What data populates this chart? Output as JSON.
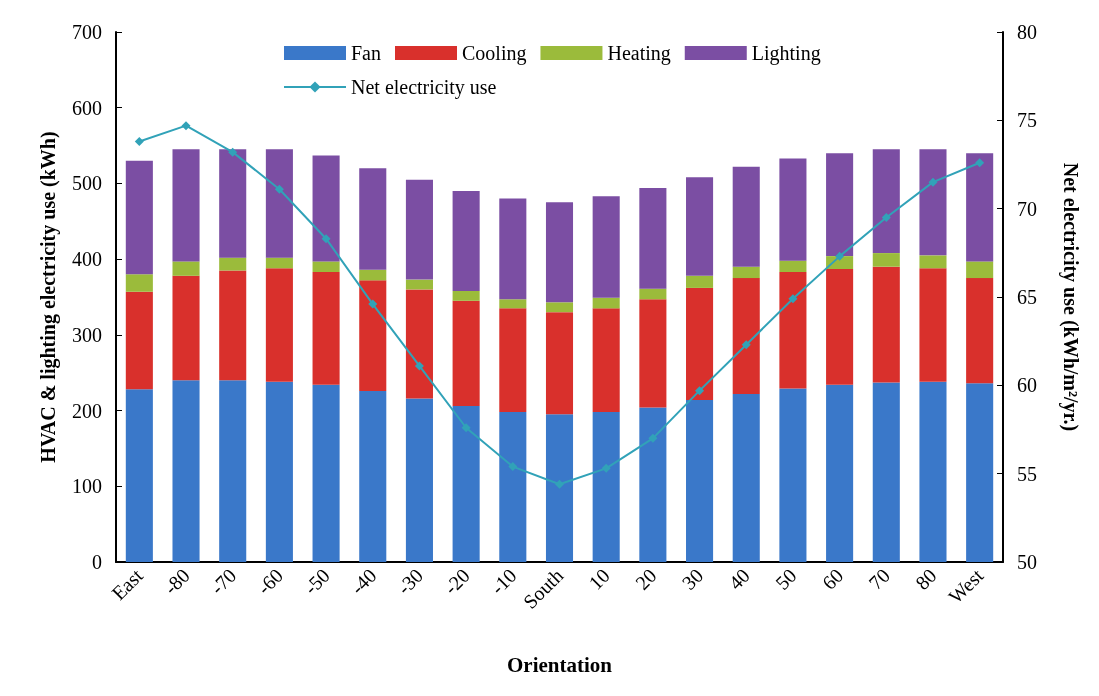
{
  "chart_data": {
    "type": "bar",
    "stacked": true,
    "xlabel": "Orientation",
    "ylabel": "HVAC & lighting electricity use (kWh)",
    "y2label": "Net electricity use (kWh/m²/yr.)",
    "categories": [
      "East",
      "-80",
      "-70",
      "-60",
      "-50",
      "-40",
      "-30",
      "-20",
      "-10",
      "South",
      "10",
      "20",
      "30",
      "40",
      "50",
      "60",
      "70",
      "80",
      "West"
    ],
    "series": [
      {
        "name": "Fan",
        "color": "#3a78c9",
        "values": [
          228,
          240,
          240,
          238,
          234,
          226,
          216,
          206,
          198,
          195,
          198,
          204,
          214,
          222,
          229,
          234,
          237,
          238,
          236
        ]
      },
      {
        "name": "Cooling",
        "color": "#d9302c",
        "values": [
          129,
          138,
          145,
          150,
          149,
          146,
          144,
          139,
          137,
          135,
          137,
          143,
          148,
          153,
          154,
          153,
          153,
          150,
          139
        ]
      },
      {
        "name": "Heating",
        "color": "#9bbb3b",
        "values": [
          23,
          19,
          17,
          14,
          14,
          14,
          13,
          13,
          12,
          13,
          14,
          14,
          16,
          15,
          15,
          17,
          18,
          17,
          22
        ]
      },
      {
        "name": "Lighting",
        "color": "#7b4ea3",
        "values": [
          150,
          148,
          143,
          143,
          140,
          134,
          132,
          132,
          133,
          132,
          134,
          133,
          130,
          132,
          135,
          136,
          137,
          140,
          143
        ]
      },
      {
        "name": "Net electricity use",
        "type": "line",
        "axis": "y2",
        "color": "#31a2b8",
        "values": [
          73.8,
          74.7,
          73.2,
          71.1,
          68.3,
          64.6,
          61.1,
          57.6,
          55.4,
          54.4,
          55.3,
          57.0,
          59.7,
          62.3,
          64.9,
          67.3,
          69.5,
          71.5,
          72.6
        ]
      }
    ],
    "ylim": [
      0,
      700
    ],
    "yticks": [
      0,
      100,
      200,
      300,
      400,
      500,
      600,
      700
    ],
    "y2lim": [
      50,
      80
    ],
    "y2ticks": [
      50,
      55,
      60,
      65,
      70,
      75,
      80
    ],
    "grid": false,
    "legend": "top",
    "marker": "diamond"
  }
}
